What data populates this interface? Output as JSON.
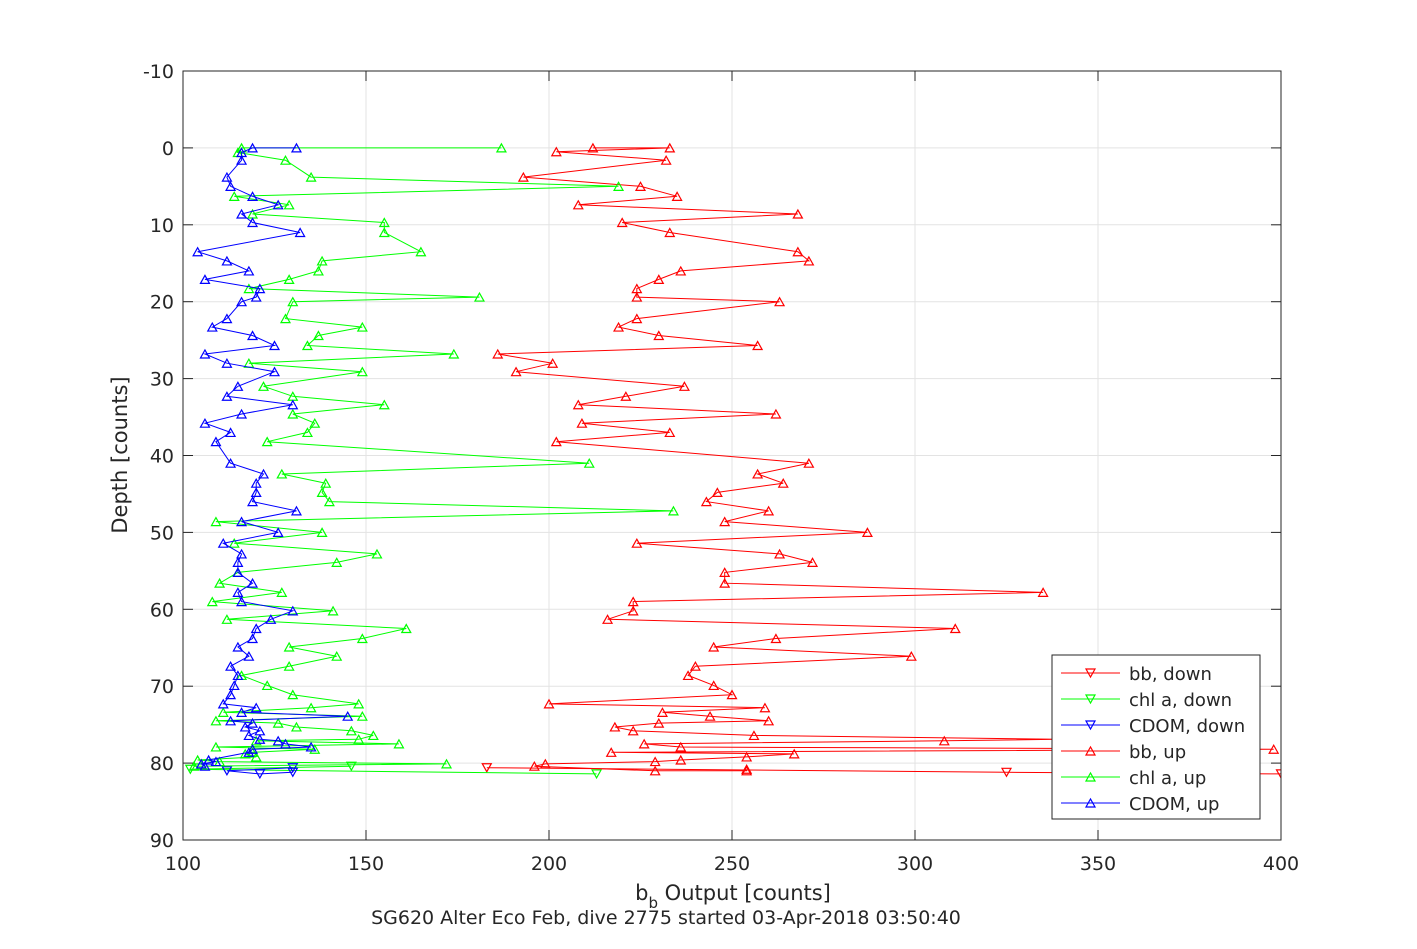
{
  "chart_data": {
    "type": "line",
    "title": "",
    "xlabel_main": "b",
    "xlabel_sub": "b",
    "xlabel_rest": " Output [counts]",
    "ylabel": "Depth [counts]",
    "footer": "SG620 Alter Eco Feb, dive 2775 started 03-Apr-2018 03:50:40",
    "xlim": [
      100,
      400
    ],
    "ylim": [
      -10,
      90
    ],
    "y_reversed": true,
    "grid": true,
    "legend_position": "bottom-right",
    "xticks": [
      "100",
      "150",
      "200",
      "250",
      "300",
      "350",
      "400"
    ],
    "yticks": [
      "-10",
      "0",
      "10",
      "20",
      "30",
      "40",
      "50",
      "60",
      "70",
      "80",
      "90"
    ],
    "xtick_values": [
      100,
      150,
      200,
      250,
      300,
      350,
      400
    ],
    "ytick_values": [
      -10,
      0,
      10,
      20,
      30,
      40,
      50,
      60,
      70,
      80,
      90
    ],
    "series": [
      {
        "name": "bb, down",
        "color": "#ff0000",
        "marker": "triangle-down",
        "points": [
          [
            183,
            80.6
          ],
          [
            325,
            81.2
          ],
          [
            400,
            81.4
          ]
        ]
      },
      {
        "name": "chl a, down",
        "color": "#00ff00",
        "marker": "triangle-down",
        "points": [
          [
            146,
            80.4
          ],
          [
            102,
            80.8
          ],
          [
            213,
            81.4
          ]
        ]
      },
      {
        "name": "CDOM, down",
        "color": "#0000ff",
        "marker": "triangle-down",
        "points": [
          [
            130,
            80.6
          ],
          [
            112,
            81.0
          ],
          [
            121,
            81.4
          ],
          [
            130,
            81.2
          ]
        ]
      },
      {
        "name": "bb, up",
        "color": "#ff0000",
        "marker": "triangle-up",
        "points": [
          [
            212,
            0.0
          ],
          [
            233,
            0.0
          ],
          [
            202,
            0.5
          ],
          [
            232,
            1.6
          ],
          [
            193,
            3.8
          ],
          [
            225,
            5.0
          ],
          [
            235,
            6.3
          ],
          [
            208,
            7.4
          ],
          [
            268,
            8.6
          ],
          [
            220,
            9.7
          ],
          [
            233,
            11.0
          ],
          [
            268,
            13.5
          ],
          [
            271,
            14.7
          ],
          [
            236,
            16.0
          ],
          [
            230,
            17.1
          ],
          [
            224,
            18.3
          ],
          [
            224,
            19.4
          ],
          [
            263,
            20.0
          ],
          [
            224,
            22.2
          ],
          [
            219,
            23.3
          ],
          [
            230,
            24.4
          ],
          [
            257,
            25.7
          ],
          [
            186,
            26.8
          ],
          [
            201,
            28.0
          ],
          [
            191,
            29.1
          ],
          [
            237,
            31.0
          ],
          [
            221,
            32.3
          ],
          [
            208,
            33.4
          ],
          [
            262,
            34.6
          ],
          [
            209,
            35.8
          ],
          [
            233,
            37.0
          ],
          [
            202,
            38.2
          ],
          [
            271,
            41.0
          ],
          [
            257,
            42.4
          ],
          [
            264,
            43.6
          ],
          [
            246,
            44.8
          ],
          [
            243,
            46.0
          ],
          [
            260,
            47.2
          ],
          [
            248,
            48.6
          ],
          [
            287,
            50.0
          ],
          [
            224,
            51.4
          ],
          [
            263,
            52.8
          ],
          [
            272,
            53.9
          ],
          [
            248,
            55.2
          ],
          [
            248,
            56.6
          ],
          [
            335,
            57.8
          ],
          [
            223,
            59.0
          ],
          [
            223,
            60.2
          ],
          [
            216,
            61.3
          ],
          [
            311,
            62.5
          ],
          [
            262,
            63.8
          ],
          [
            245,
            64.9
          ],
          [
            299,
            66.1
          ],
          [
            240,
            67.4
          ],
          [
            238,
            68.6
          ],
          [
            245,
            69.9
          ],
          [
            250,
            71.1
          ],
          [
            200,
            72.3
          ],
          [
            259,
            72.8
          ],
          [
            231,
            73.4
          ],
          [
            244,
            73.9
          ],
          [
            260,
            74.5
          ],
          [
            230,
            74.8
          ],
          [
            218,
            75.3
          ],
          [
            223,
            75.8
          ],
          [
            256,
            76.4
          ],
          [
            339,
            76.9
          ],
          [
            308,
            77.1
          ],
          [
            226,
            77.5
          ],
          [
            236,
            77.9
          ],
          [
            398,
            78.2
          ],
          [
            217,
            78.6
          ],
          [
            267,
            78.8
          ],
          [
            254,
            79.2
          ],
          [
            236,
            79.6
          ],
          [
            229,
            79.8
          ],
          [
            199,
            80.1
          ],
          [
            196,
            80.4
          ],
          [
            229,
            81.0
          ],
          [
            254,
            81.0
          ],
          [
            254,
            80.8
          ]
        ]
      },
      {
        "name": "chl a, up",
        "color": "#00ff00",
        "marker": "triangle-up",
        "points": [
          [
            187,
            0.0
          ],
          [
            116,
            0.0
          ],
          [
            115,
            0.6
          ],
          [
            128,
            1.6
          ],
          [
            135,
            3.8
          ],
          [
            219,
            5.0
          ],
          [
            114,
            6.3
          ],
          [
            129,
            7.4
          ],
          [
            119,
            8.6
          ],
          [
            155,
            9.7
          ],
          [
            155,
            11.0
          ],
          [
            165,
            13.5
          ],
          [
            138,
            14.7
          ],
          [
            137,
            16.0
          ],
          [
            129,
            17.1
          ],
          [
            118,
            18.3
          ],
          [
            181,
            19.4
          ],
          [
            130,
            20.0
          ],
          [
            128,
            22.2
          ],
          [
            149,
            23.3
          ],
          [
            137,
            24.4
          ],
          [
            134,
            25.7
          ],
          [
            174,
            26.8
          ],
          [
            118,
            28.0
          ],
          [
            149,
            29.1
          ],
          [
            122,
            31.0
          ],
          [
            130,
            32.3
          ],
          [
            155,
            33.4
          ],
          [
            130,
            34.6
          ],
          [
            136,
            35.8
          ],
          [
            134,
            37.0
          ],
          [
            123,
            38.2
          ],
          [
            211,
            41.0
          ],
          [
            127,
            42.4
          ],
          [
            139,
            43.6
          ],
          [
            138,
            44.8
          ],
          [
            140,
            46.0
          ],
          [
            234,
            47.2
          ],
          [
            109,
            48.6
          ],
          [
            138,
            50.0
          ],
          [
            114,
            51.4
          ],
          [
            153,
            52.8
          ],
          [
            142,
            53.9
          ],
          [
            115,
            55.2
          ],
          [
            110,
            56.6
          ],
          [
            127,
            57.8
          ],
          [
            108,
            59.0
          ],
          [
            141,
            60.2
          ],
          [
            112,
            61.3
          ],
          [
            161,
            62.5
          ],
          [
            149,
            63.8
          ],
          [
            129,
            64.9
          ],
          [
            142,
            66.1
          ],
          [
            129,
            67.4
          ],
          [
            116,
            68.6
          ],
          [
            123,
            69.9
          ],
          [
            130,
            71.1
          ],
          [
            148,
            72.3
          ],
          [
            135,
            72.8
          ],
          [
            111,
            73.4
          ],
          [
            149,
            73.9
          ],
          [
            109,
            74.5
          ],
          [
            126,
            74.8
          ],
          [
            131,
            75.3
          ],
          [
            146,
            75.8
          ],
          [
            152,
            76.4
          ],
          [
            148,
            76.9
          ],
          [
            120,
            77.1
          ],
          [
            159,
            77.5
          ],
          [
            109,
            77.9
          ],
          [
            136,
            78.2
          ],
          [
            119,
            78.6
          ],
          [
            117,
            78.8
          ],
          [
            120,
            79.2
          ],
          [
            104,
            79.6
          ],
          [
            110,
            79.8
          ],
          [
            172,
            80.1
          ],
          [
            103,
            80.4
          ]
        ]
      },
      {
        "name": "CDOM, up",
        "color": "#0000ff",
        "marker": "triangle-up",
        "points": [
          [
            131,
            0.0
          ],
          [
            119,
            0.0
          ],
          [
            116,
            0.6
          ],
          [
            116,
            1.6
          ],
          [
            112,
            3.8
          ],
          [
            113,
            5.0
          ],
          [
            119,
            6.3
          ],
          [
            126,
            7.4
          ],
          [
            116,
            8.6
          ],
          [
            119,
            9.7
          ],
          [
            132,
            11.0
          ],
          [
            104,
            13.5
          ],
          [
            112,
            14.7
          ],
          [
            118,
            16.0
          ],
          [
            106,
            17.1
          ],
          [
            121,
            18.3
          ],
          [
            120,
            19.4
          ],
          [
            116,
            20.0
          ],
          [
            112,
            22.2
          ],
          [
            108,
            23.3
          ],
          [
            119,
            24.4
          ],
          [
            125,
            25.7
          ],
          [
            106,
            26.8
          ],
          [
            112,
            28.0
          ],
          [
            125,
            29.1
          ],
          [
            115,
            31.0
          ],
          [
            112,
            32.3
          ],
          [
            130,
            33.4
          ],
          [
            116,
            34.6
          ],
          [
            106,
            35.8
          ],
          [
            113,
            37.0
          ],
          [
            109,
            38.2
          ],
          [
            113,
            41.0
          ],
          [
            122,
            42.4
          ],
          [
            120,
            43.6
          ],
          [
            120,
            44.8
          ],
          [
            119,
            46.0
          ],
          [
            131,
            47.2
          ],
          [
            116,
            48.6
          ],
          [
            126,
            50.0
          ],
          [
            111,
            51.4
          ],
          [
            116,
            52.8
          ],
          [
            115,
            53.9
          ],
          [
            115,
            55.2
          ],
          [
            119,
            56.6
          ],
          [
            115,
            57.8
          ],
          [
            116,
            59.0
          ],
          [
            130,
            60.2
          ],
          [
            124,
            61.3
          ],
          [
            120,
            62.5
          ],
          [
            119,
            63.8
          ],
          [
            115,
            64.9
          ],
          [
            118,
            66.1
          ],
          [
            113,
            67.4
          ],
          [
            115,
            68.6
          ],
          [
            114,
            69.9
          ],
          [
            113,
            71.1
          ],
          [
            111,
            72.3
          ],
          [
            120,
            72.8
          ],
          [
            116,
            73.4
          ],
          [
            145,
            73.9
          ],
          [
            113,
            74.5
          ],
          [
            119,
            74.8
          ],
          [
            117,
            75.3
          ],
          [
            121,
            75.8
          ],
          [
            118,
            76.4
          ],
          [
            121,
            76.9
          ],
          [
            126,
            77.1
          ],
          [
            128,
            77.5
          ],
          [
            135,
            77.9
          ],
          [
            119,
            78.2
          ],
          [
            118,
            78.6
          ],
          [
            107,
            79.6
          ],
          [
            109,
            79.8
          ],
          [
            105,
            80.1
          ],
          [
            106,
            80.4
          ]
        ]
      }
    ]
  }
}
